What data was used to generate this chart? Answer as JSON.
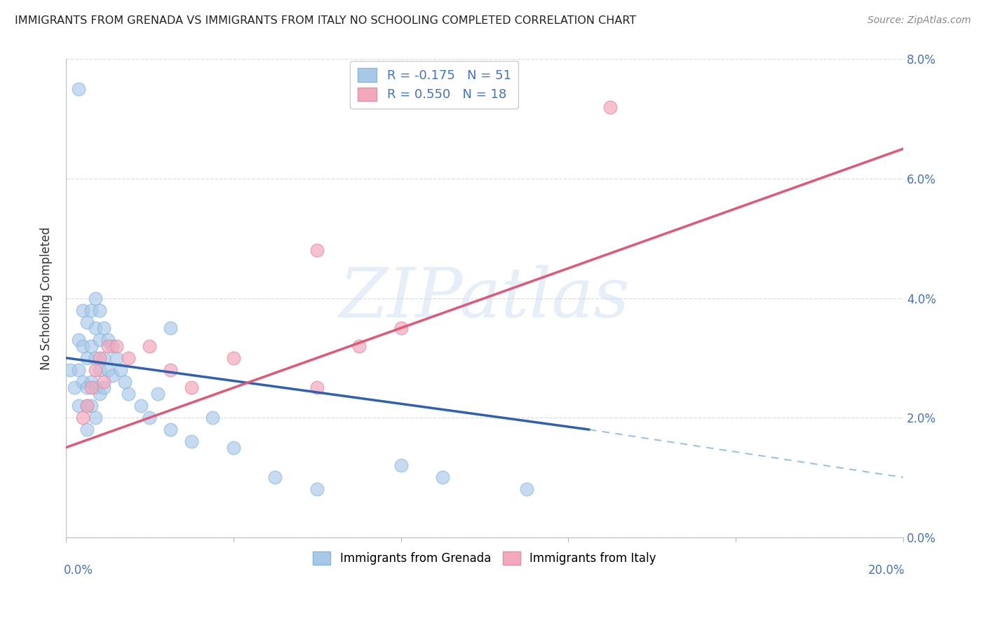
{
  "title": "IMMIGRANTS FROM GRENADA VS IMMIGRANTS FROM ITALY NO SCHOOLING COMPLETED CORRELATION CHART",
  "source": "Source: ZipAtlas.com",
  "ylabel": "No Schooling Completed",
  "xlim": [
    0.0,
    0.2
  ],
  "ylim": [
    0.0,
    0.08
  ],
  "grenada_R": -0.175,
  "grenada_N": 51,
  "italy_R": 0.55,
  "italy_N": 18,
  "grenada_color": "#a8c8e8",
  "italy_color": "#f4a8bc",
  "grenada_line_color": "#3060b0",
  "italy_line_color": "#e05878",
  "label_color": "#4472c4",
  "grenada_points_x": [
    0.001,
    0.002,
    0.003,
    0.003,
    0.003,
    0.004,
    0.004,
    0.004,
    0.005,
    0.005,
    0.005,
    0.005,
    0.005,
    0.006,
    0.006,
    0.006,
    0.006,
    0.007,
    0.007,
    0.007,
    0.007,
    0.007,
    0.008,
    0.008,
    0.008,
    0.008,
    0.009,
    0.009,
    0.009,
    0.01,
    0.01,
    0.011,
    0.011,
    0.012,
    0.013,
    0.014,
    0.015,
    0.018,
    0.02,
    0.022,
    0.025,
    0.03,
    0.035,
    0.04,
    0.05,
    0.06,
    0.08,
    0.09,
    0.11,
    0.003,
    0.025
  ],
  "grenada_points_y": [
    0.028,
    0.025,
    0.033,
    0.028,
    0.022,
    0.038,
    0.032,
    0.026,
    0.036,
    0.03,
    0.025,
    0.022,
    0.018,
    0.038,
    0.032,
    0.026,
    0.022,
    0.04,
    0.035,
    0.03,
    0.025,
    0.02,
    0.038,
    0.033,
    0.028,
    0.024,
    0.035,
    0.03,
    0.025,
    0.033,
    0.028,
    0.032,
    0.027,
    0.03,
    0.028,
    0.026,
    0.024,
    0.022,
    0.02,
    0.024,
    0.018,
    0.016,
    0.02,
    0.015,
    0.01,
    0.008,
    0.012,
    0.01,
    0.008,
    0.075,
    0.035
  ],
  "italy_points_x": [
    0.004,
    0.005,
    0.006,
    0.007,
    0.008,
    0.009,
    0.01,
    0.012,
    0.015,
    0.02,
    0.025,
    0.03,
    0.04,
    0.06,
    0.07,
    0.08,
    0.13,
    0.06
  ],
  "italy_points_y": [
    0.02,
    0.022,
    0.025,
    0.028,
    0.03,
    0.026,
    0.032,
    0.032,
    0.03,
    0.032,
    0.028,
    0.025,
    0.03,
    0.025,
    0.032,
    0.035,
    0.072,
    0.048
  ],
  "grenada_line": {
    "x0": 0.0,
    "x1": 0.125,
    "y0": 0.03,
    "y1": 0.018
  },
  "italy_line": {
    "x0": 0.0,
    "x1": 0.2,
    "y0": 0.015,
    "y1": 0.065
  },
  "dashed_line": {
    "x0": 0.125,
    "x1": 0.2,
    "y0": 0.018,
    "y1": 0.01
  },
  "watermark_text": "ZIPatlas",
  "background_color": "#ffffff",
  "grid_color": "#dddddd"
}
